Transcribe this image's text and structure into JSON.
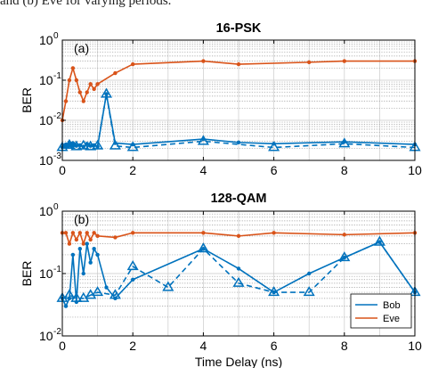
{
  "caption": "and (b) Eve for varying periods.",
  "chart_data": [
    {
      "type": "line",
      "panel_label": "(a)",
      "title": "16-PSK",
      "xlabel": "",
      "ylabel": "BER",
      "xlim": [
        0,
        10
      ],
      "ylim": [
        0.001,
        1
      ],
      "yscale": "log",
      "grid": true,
      "x_ticks": [
        "0",
        "2",
        "4",
        "6",
        "8",
        "10"
      ],
      "y_ticks": [
        {
          "base": "10",
          "exp": "-3"
        },
        {
          "base": "10",
          "exp": "-2"
        },
        {
          "base": "10",
          "exp": "-1"
        },
        {
          "base": "10",
          "exp": "0"
        }
      ],
      "series": [
        {
          "name": "Eve",
          "color": "#D95319",
          "marker": "dot",
          "style": "solid",
          "x": [
            0,
            0.1,
            0.2,
            0.3,
            0.4,
            0.5,
            0.6,
            0.7,
            0.8,
            0.9,
            1.0,
            1.5,
            2,
            4,
            5,
            7,
            8,
            10
          ],
          "y": [
            0.01,
            0.03,
            0.1,
            0.2,
            0.1,
            0.05,
            0.03,
            0.05,
            0.08,
            0.06,
            0.08,
            0.15,
            0.25,
            0.3,
            0.25,
            0.28,
            0.3,
            0.3
          ]
        },
        {
          "name": "Bob",
          "color": "#0072BD",
          "marker": "dot",
          "style": "solid",
          "x": [
            0,
            0.05,
            0.1,
            0.15,
            0.2,
            0.25,
            0.3,
            0.35,
            0.4,
            0.5,
            0.6,
            0.7,
            0.8,
            0.9,
            1.0,
            1.25,
            1.5,
            2,
            4,
            5,
            6,
            8,
            10
          ],
          "y": [
            0.0021,
            0.0023,
            0.0025,
            0.0022,
            0.0026,
            0.0023,
            0.0027,
            0.0025,
            0.0023,
            0.0024,
            0.0022,
            0.0026,
            0.0023,
            0.0024,
            0.0022,
            0.045,
            0.0027,
            0.0025,
            0.0034,
            0.0028,
            0.0026,
            0.0029,
            0.0025
          ]
        },
        {
          "name": "Bob",
          "color": "#0072BD",
          "marker": "triangle",
          "style": "dashed",
          "x": [
            0,
            0.2,
            0.4,
            0.6,
            0.8,
            1.0,
            1.25,
            1.5,
            2,
            4,
            6,
            8,
            10
          ],
          "y": [
            0.0021,
            0.0024,
            0.0022,
            0.0023,
            0.0022,
            0.0023,
            0.045,
            0.0023,
            0.0021,
            0.003,
            0.0021,
            0.0026,
            0.0021
          ]
        }
      ]
    },
    {
      "type": "line",
      "panel_label": "(b)",
      "title": "128-QAM",
      "xlabel": "Time Delay (ns)",
      "ylabel": "BER",
      "xlim": [
        0,
        10
      ],
      "ylim": [
        0.01,
        1
      ],
      "yscale": "log",
      "grid": true,
      "legend_position": "bottom-right",
      "x_ticks": [
        "0",
        "2",
        "4",
        "6",
        "8",
        "10"
      ],
      "y_ticks": [
        {
          "base": "10",
          "exp": "-2"
        },
        {
          "base": "10",
          "exp": "-1"
        },
        {
          "base": "10",
          "exp": "0"
        }
      ],
      "legend": [
        {
          "name": "Bob",
          "color": "#0072BD"
        },
        {
          "name": "Eve",
          "color": "#D95319"
        }
      ],
      "series": [
        {
          "name": "Eve",
          "color": "#D95319",
          "marker": "dot",
          "style": "solid",
          "x": [
            0,
            0.1,
            0.2,
            0.3,
            0.4,
            0.5,
            0.6,
            0.7,
            0.8,
            0.9,
            1.0,
            1.5,
            2,
            4,
            5,
            6,
            8,
            10
          ],
          "y": [
            0.45,
            0.45,
            0.3,
            0.45,
            0.35,
            0.45,
            0.3,
            0.45,
            0.35,
            0.45,
            0.4,
            0.38,
            0.45,
            0.45,
            0.4,
            0.45,
            0.42,
            0.45
          ]
        },
        {
          "name": "Bob",
          "color": "#0072BD",
          "marker": "dot",
          "style": "solid",
          "x": [
            0,
            0.1,
            0.2,
            0.3,
            0.4,
            0.5,
            0.6,
            0.7,
            0.8,
            0.9,
            1.0,
            1.25,
            1.5,
            2,
            4,
            5,
            6,
            7,
            8,
            9,
            10
          ],
          "y": [
            0.04,
            0.03,
            0.04,
            0.2,
            0.035,
            0.25,
            0.1,
            0.3,
            0.15,
            0.25,
            0.2,
            0.06,
            0.04,
            0.08,
            0.25,
            0.12,
            0.05,
            0.1,
            0.18,
            0.32,
            0.05
          ]
        },
        {
          "name": "Bob",
          "color": "#0072BD",
          "marker": "triangle",
          "style": "dashed",
          "x": [
            0,
            0.2,
            0.4,
            0.6,
            0.8,
            1.0,
            1.5,
            2,
            3,
            4,
            5,
            6,
            7,
            8,
            9,
            10
          ],
          "y": [
            0.04,
            0.045,
            0.04,
            0.04,
            0.045,
            0.05,
            0.045,
            0.13,
            0.06,
            0.25,
            0.07,
            0.05,
            0.05,
            0.18,
            0.32,
            0.05
          ]
        }
      ]
    }
  ]
}
